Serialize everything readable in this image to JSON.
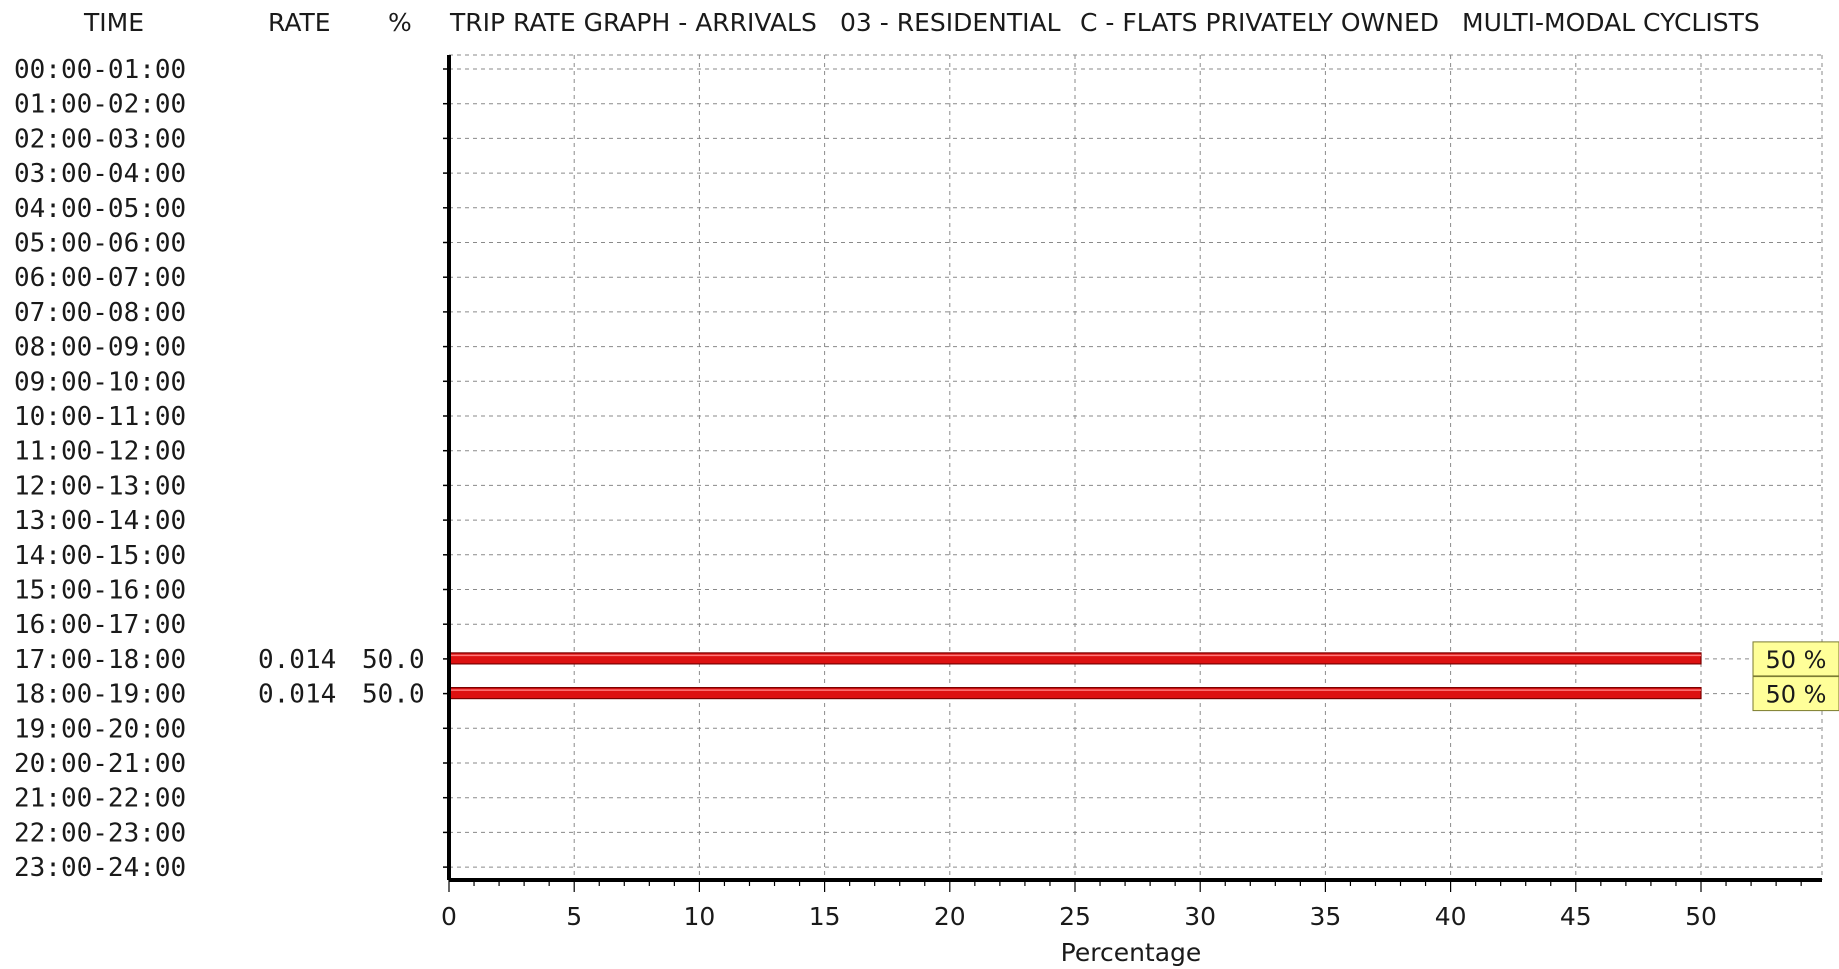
{
  "header": {
    "time": "TIME",
    "rate": "RATE",
    "pct": "%",
    "title": "TRIP RATE GRAPH - ARRIVALS",
    "category": "03 - RESIDENTIAL",
    "subcategory": "C - FLATS PRIVATELY OWNED",
    "mode": "MULTI-MODAL CYCLISTS"
  },
  "chart_data": {
    "type": "bar",
    "orientation": "horizontal",
    "title": "TRIP RATE GRAPH - ARRIVALS",
    "xlabel": "Percentage",
    "xlim": [
      0,
      55
    ],
    "xticks": [
      0,
      5,
      10,
      15,
      20,
      25,
      30,
      35,
      40,
      45,
      50
    ],
    "grid": true,
    "bar_color": "#dd1111",
    "label_box_color": "#ffff99",
    "categories": [
      "00:00-01:00",
      "01:00-02:00",
      "02:00-03:00",
      "03:00-04:00",
      "04:00-05:00",
      "05:00-06:00",
      "06:00-07:00",
      "07:00-08:00",
      "08:00-09:00",
      "09:00-10:00",
      "10:00-11:00",
      "11:00-12:00",
      "12:00-13:00",
      "13:00-14:00",
      "14:00-15:00",
      "15:00-16:00",
      "16:00-17:00",
      "17:00-18:00",
      "18:00-19:00",
      "19:00-20:00",
      "20:00-21:00",
      "21:00-22:00",
      "22:00-23:00",
      "23:00-24:00"
    ],
    "rates": [
      "",
      "",
      "",
      "",
      "",
      "",
      "",
      "",
      "",
      "",
      "",
      "",
      "",
      "",
      "",
      "",
      "",
      "0.014",
      "0.014",
      "",
      "",
      "",
      "",
      ""
    ],
    "percent_text": [
      "",
      "",
      "",
      "",
      "",
      "",
      "",
      "",
      "",
      "",
      "",
      "",
      "",
      "",
      "",
      "",
      "",
      "50.0",
      "50.0",
      "",
      "",
      "",
      "",
      ""
    ],
    "values": [
      0,
      0,
      0,
      0,
      0,
      0,
      0,
      0,
      0,
      0,
      0,
      0,
      0,
      0,
      0,
      0,
      0,
      50,
      50,
      0,
      0,
      0,
      0,
      0
    ],
    "bar_labels": [
      "",
      "",
      "",
      "",
      "",
      "",
      "",
      "",
      "",
      "",
      "",
      "",
      "",
      "",
      "",
      "",
      "",
      "50 %",
      "50 %",
      "",
      "",
      "",
      "",
      ""
    ]
  }
}
